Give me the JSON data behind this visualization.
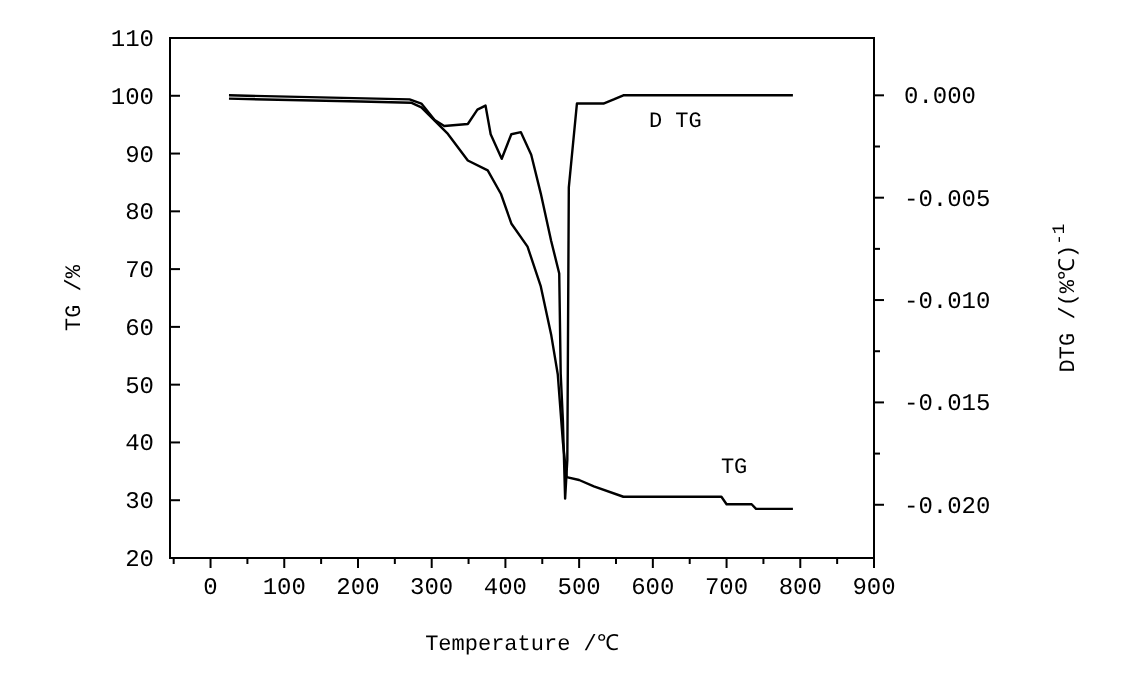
{
  "chart_data": {
    "type": "line",
    "xlabel": "Temperature /℃",
    "ylabel": "TG /%",
    "y2label": "DTG /(%℃)$^{-1}$",
    "xlim": [
      -55,
      900
    ],
    "ylim": [
      20,
      110
    ],
    "y2lim": [
      -0.0226,
      0.0028
    ],
    "xticks": [
      {
        "value": -50,
        "label": null
      },
      0,
      {
        "value": 50,
        "label": null
      },
      100,
      {
        "value": 150,
        "label": null
      },
      200,
      {
        "value": 250,
        "label": null
      },
      300,
      {
        "value": 350,
        "label": null
      },
      400,
      {
        "value": 450,
        "label": null
      },
      500,
      {
        "value": 550,
        "label": null
      },
      600,
      {
        "value": 650,
        "label": null
      },
      700,
      {
        "value": 750,
        "label": null
      },
      800,
      {
        "value": 850,
        "label": null
      },
      900
    ],
    "yticks": [
      20,
      30,
      40,
      50,
      60,
      70,
      80,
      90,
      100,
      110
    ],
    "y2ticks": [
      {
        "value": 0,
        "label": "0.000"
      },
      {
        "value": -0.0025,
        "label": null
      },
      {
        "value": -0.005,
        "label": "-0.005"
      },
      {
        "value": -0.0075,
        "label": null
      },
      {
        "value": -0.01,
        "label": "-0.010"
      },
      {
        "value": -0.0125,
        "label": null
      },
      {
        "value": -0.015,
        "label": "-0.015"
      },
      {
        "value": -0.0175,
        "label": null
      },
      {
        "value": -0.02,
        "label": "-0.020"
      }
    ],
    "grid": false,
    "marker": "none",
    "line_style": "solid",
    "series": [
      {
        "name": "TG",
        "color": "#000000",
        "x": [
          25,
          204,
          272,
          286,
          304,
          322,
          349,
          376,
          394,
          408,
          430,
          448,
          462,
          471,
          478,
          483,
          500,
          520,
          560,
          693,
          700,
          734,
          740,
          790
        ],
        "values": [
          99.5,
          99,
          98.8,
          98,
          95.7,
          93.4,
          88.8,
          87.1,
          83,
          77.9,
          73.9,
          67,
          58.7,
          51.8,
          40,
          34,
          33.5,
          32.4,
          30.6,
          30.6,
          29.3,
          29.3,
          28.5,
          28.5
        ]
      },
      {
        "name": "D TG",
        "axis": "y2",
        "color": "#000000",
        "x": [
          25,
          270,
          286,
          304,
          317,
          349,
          362,
          373,
          380,
          395,
          408,
          421,
          435,
          448,
          462,
          473,
          475,
          478,
          481,
          484,
          486,
          497,
          533,
          547,
          560,
          790
        ],
        "values": [
          0,
          -0.0002,
          -0.0004,
          -0.0012,
          -0.0015,
          -0.0014,
          -0.0007,
          -0.0005,
          -0.0019,
          -0.0031,
          -0.0019,
          -0.0018,
          -0.0029,
          -0.0048,
          -0.0071,
          -0.0087,
          -0.0136,
          -0.0159,
          -0.0197,
          -0.0178,
          -0.0045,
          -0.0004,
          -0.0004,
          -0.0002,
          0,
          0
        ]
      }
    ]
  }
}
